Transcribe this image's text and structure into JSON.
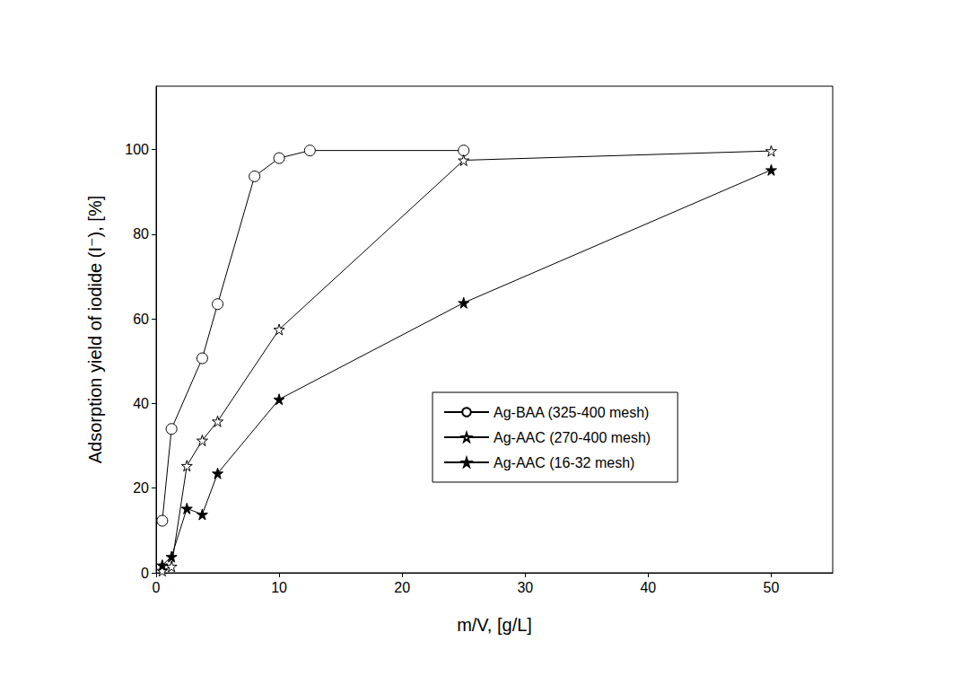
{
  "chart_data": {
    "type": "line",
    "x_label": "m/V, [g/L]",
    "y_label": "Adsorption yield of iodide (I⁻), [%]",
    "xlim": [
      0,
      55
    ],
    "xticks": [
      0,
      10,
      20,
      30,
      40,
      50
    ],
    "ylim": [
      0,
      115
    ],
    "yticks": [
      0,
      20,
      40,
      60,
      80,
      100
    ],
    "grid": false,
    "legend": "right",
    "series": [
      {
        "name": "Ag-BAA (325-400 mesh)",
        "color": "#000000",
        "marker": "open_circle",
        "x": [
          0.5,
          1.25,
          3.75,
          5,
          8,
          10,
          12.5,
          25
        ],
        "values": [
          12.3,
          34,
          50.7,
          63.5,
          93.7,
          98,
          99.8,
          99.8
        ]
      },
      {
        "name": "Ag-AAC (270-400 mesh)",
        "color": "#000000",
        "marker": "open_star",
        "x": [
          0.5,
          1.25,
          2.5,
          3.75,
          5,
          10,
          25,
          50
        ],
        "values": [
          0.5,
          1.5,
          25.3,
          31.3,
          35.8,
          57.5,
          97.5,
          99.7
        ]
      },
      {
        "name": "Ag-AAC (16-32 mesh)",
        "color": "#000000",
        "marker": "filled_star",
        "x": [
          0.5,
          1.25,
          2.5,
          3.75,
          5,
          10,
          25,
          50
        ],
        "values": [
          1.8,
          3.8,
          15.2,
          13.8,
          23.5,
          41,
          63.8,
          95.2
        ]
      }
    ]
  }
}
